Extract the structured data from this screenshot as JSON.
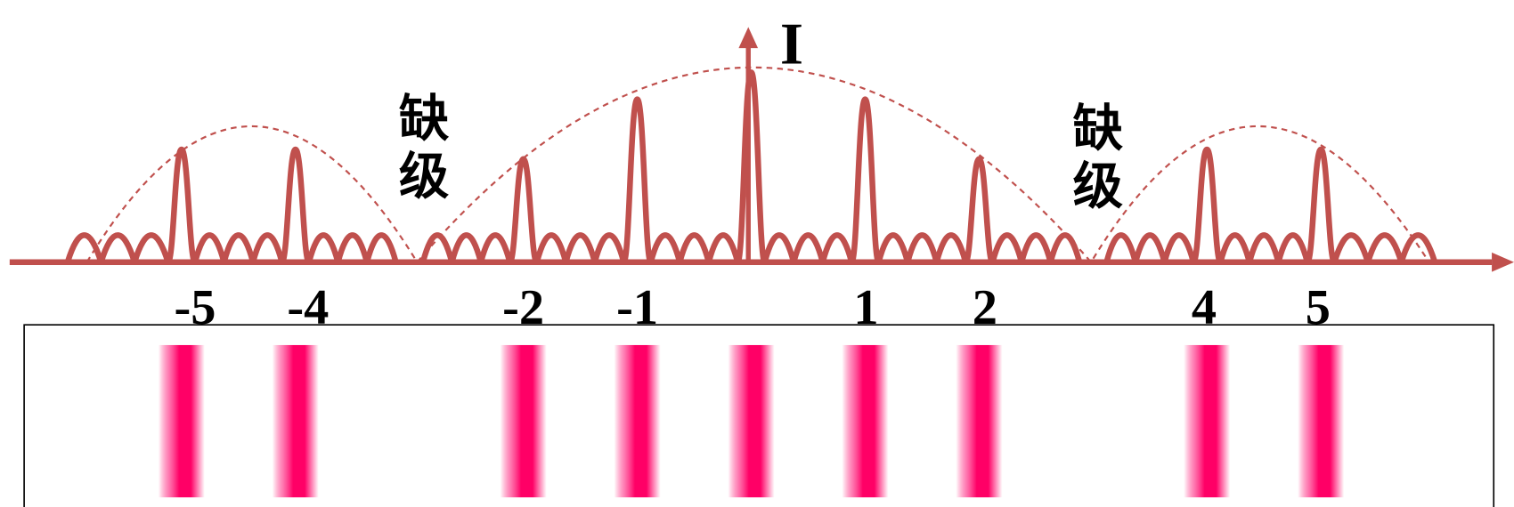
{
  "axis_label": "I",
  "orders": [
    "-5",
    "-4",
    "-2",
    "-1",
    "1",
    "2",
    "4",
    "5"
  ],
  "missing_order_labels": [
    "缺级",
    "缺级"
  ]
}
